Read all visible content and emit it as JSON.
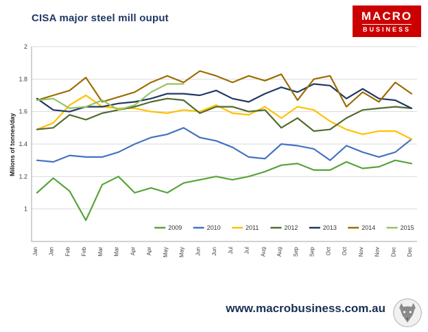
{
  "header": {
    "title": "CISA major steel mill ouput",
    "logo": {
      "line1": "MACRO",
      "line2": "BUSINESS"
    }
  },
  "footer": {
    "url": "www.macrobusiness.com.au"
  },
  "colors": {
    "brand_red": "#cc0000",
    "title_navy": "#1f3864",
    "grid": "#d9d9d9",
    "axis": "#a6a6a6",
    "tick_text": "#404040"
  },
  "chart_data": {
    "type": "line",
    "title": "CISA major steel mill ouput",
    "xlabel": "",
    "ylabel": "Milions of tonnes/day",
    "ylim": [
      0.8,
      2.0
    ],
    "yticks": [
      1,
      1.2,
      1.4,
      1.6,
      1.8,
      2
    ],
    "grid": true,
    "legend_position": "bottom-inside",
    "x_labels": [
      "Jan",
      "Jan",
      "Feb",
      "Feb",
      "Mar",
      "Mar",
      "Apr",
      "Apr",
      "May",
      "May",
      "Jun",
      "Jun",
      "Jul",
      "Jul",
      "Aug",
      "Aug",
      "Sep",
      "Sep",
      "Oct",
      "Oct",
      "Nov",
      "Nov",
      "Dec",
      "Dec"
    ],
    "series": [
      {
        "name": "2009",
        "color": "#56a339",
        "values": [
          1.1,
          1.19,
          1.11,
          0.93,
          1.15,
          1.2,
          1.1,
          1.13,
          1.1,
          1.16,
          1.18,
          1.2,
          1.18,
          1.2,
          1.23,
          1.27,
          1.28,
          1.24,
          1.24,
          1.29,
          1.25,
          1.26,
          1.3,
          1.28
        ]
      },
      {
        "name": "2010",
        "color": "#4472c4",
        "values": [
          1.3,
          1.29,
          1.33,
          1.32,
          1.32,
          1.35,
          1.4,
          1.44,
          1.46,
          1.5,
          1.44,
          1.42,
          1.38,
          1.32,
          1.31,
          1.4,
          1.39,
          1.37,
          1.3,
          1.39,
          1.35,
          1.32,
          1.35,
          1.43
        ]
      },
      {
        "name": "2011",
        "color": "#ffc000",
        "values": [
          1.49,
          1.53,
          1.64,
          1.7,
          1.63,
          1.62,
          1.62,
          1.6,
          1.59,
          1.61,
          1.6,
          1.64,
          1.59,
          1.58,
          1.63,
          1.56,
          1.63,
          1.61,
          1.54,
          1.49,
          1.46,
          1.48,
          1.48,
          1.43
        ]
      },
      {
        "name": "2012",
        "color": "#4f6b2e",
        "values": [
          1.49,
          1.5,
          1.58,
          1.55,
          1.59,
          1.61,
          1.63,
          1.66,
          1.68,
          1.67,
          1.59,
          1.63,
          1.63,
          1.6,
          1.61,
          1.5,
          1.56,
          1.48,
          1.49,
          1.56,
          1.61,
          1.62,
          1.63,
          1.62
        ]
      },
      {
        "name": "2013",
        "color": "#1f3864",
        "values": [
          1.68,
          1.61,
          1.6,
          1.63,
          1.63,
          1.65,
          1.66,
          1.68,
          1.71,
          1.71,
          1.7,
          1.73,
          1.68,
          1.66,
          1.71,
          1.75,
          1.72,
          1.77,
          1.76,
          1.68,
          1.74,
          1.68,
          1.67,
          1.62
        ]
      },
      {
        "name": "2014",
        "color": "#9c6b00",
        "values": [
          1.67,
          1.7,
          1.73,
          1.81,
          1.66,
          1.69,
          1.72,
          1.78,
          1.82,
          1.78,
          1.85,
          1.82,
          1.78,
          1.82,
          1.79,
          1.83,
          1.67,
          1.8,
          1.82,
          1.63,
          1.72,
          1.66,
          1.78,
          1.71
        ]
      },
      {
        "name": "2015",
        "color": "#92c465",
        "values": [
          1.67,
          1.68,
          1.62,
          1.63,
          1.67,
          1.61,
          1.64,
          1.72,
          1.77,
          1.77
        ]
      }
    ]
  }
}
